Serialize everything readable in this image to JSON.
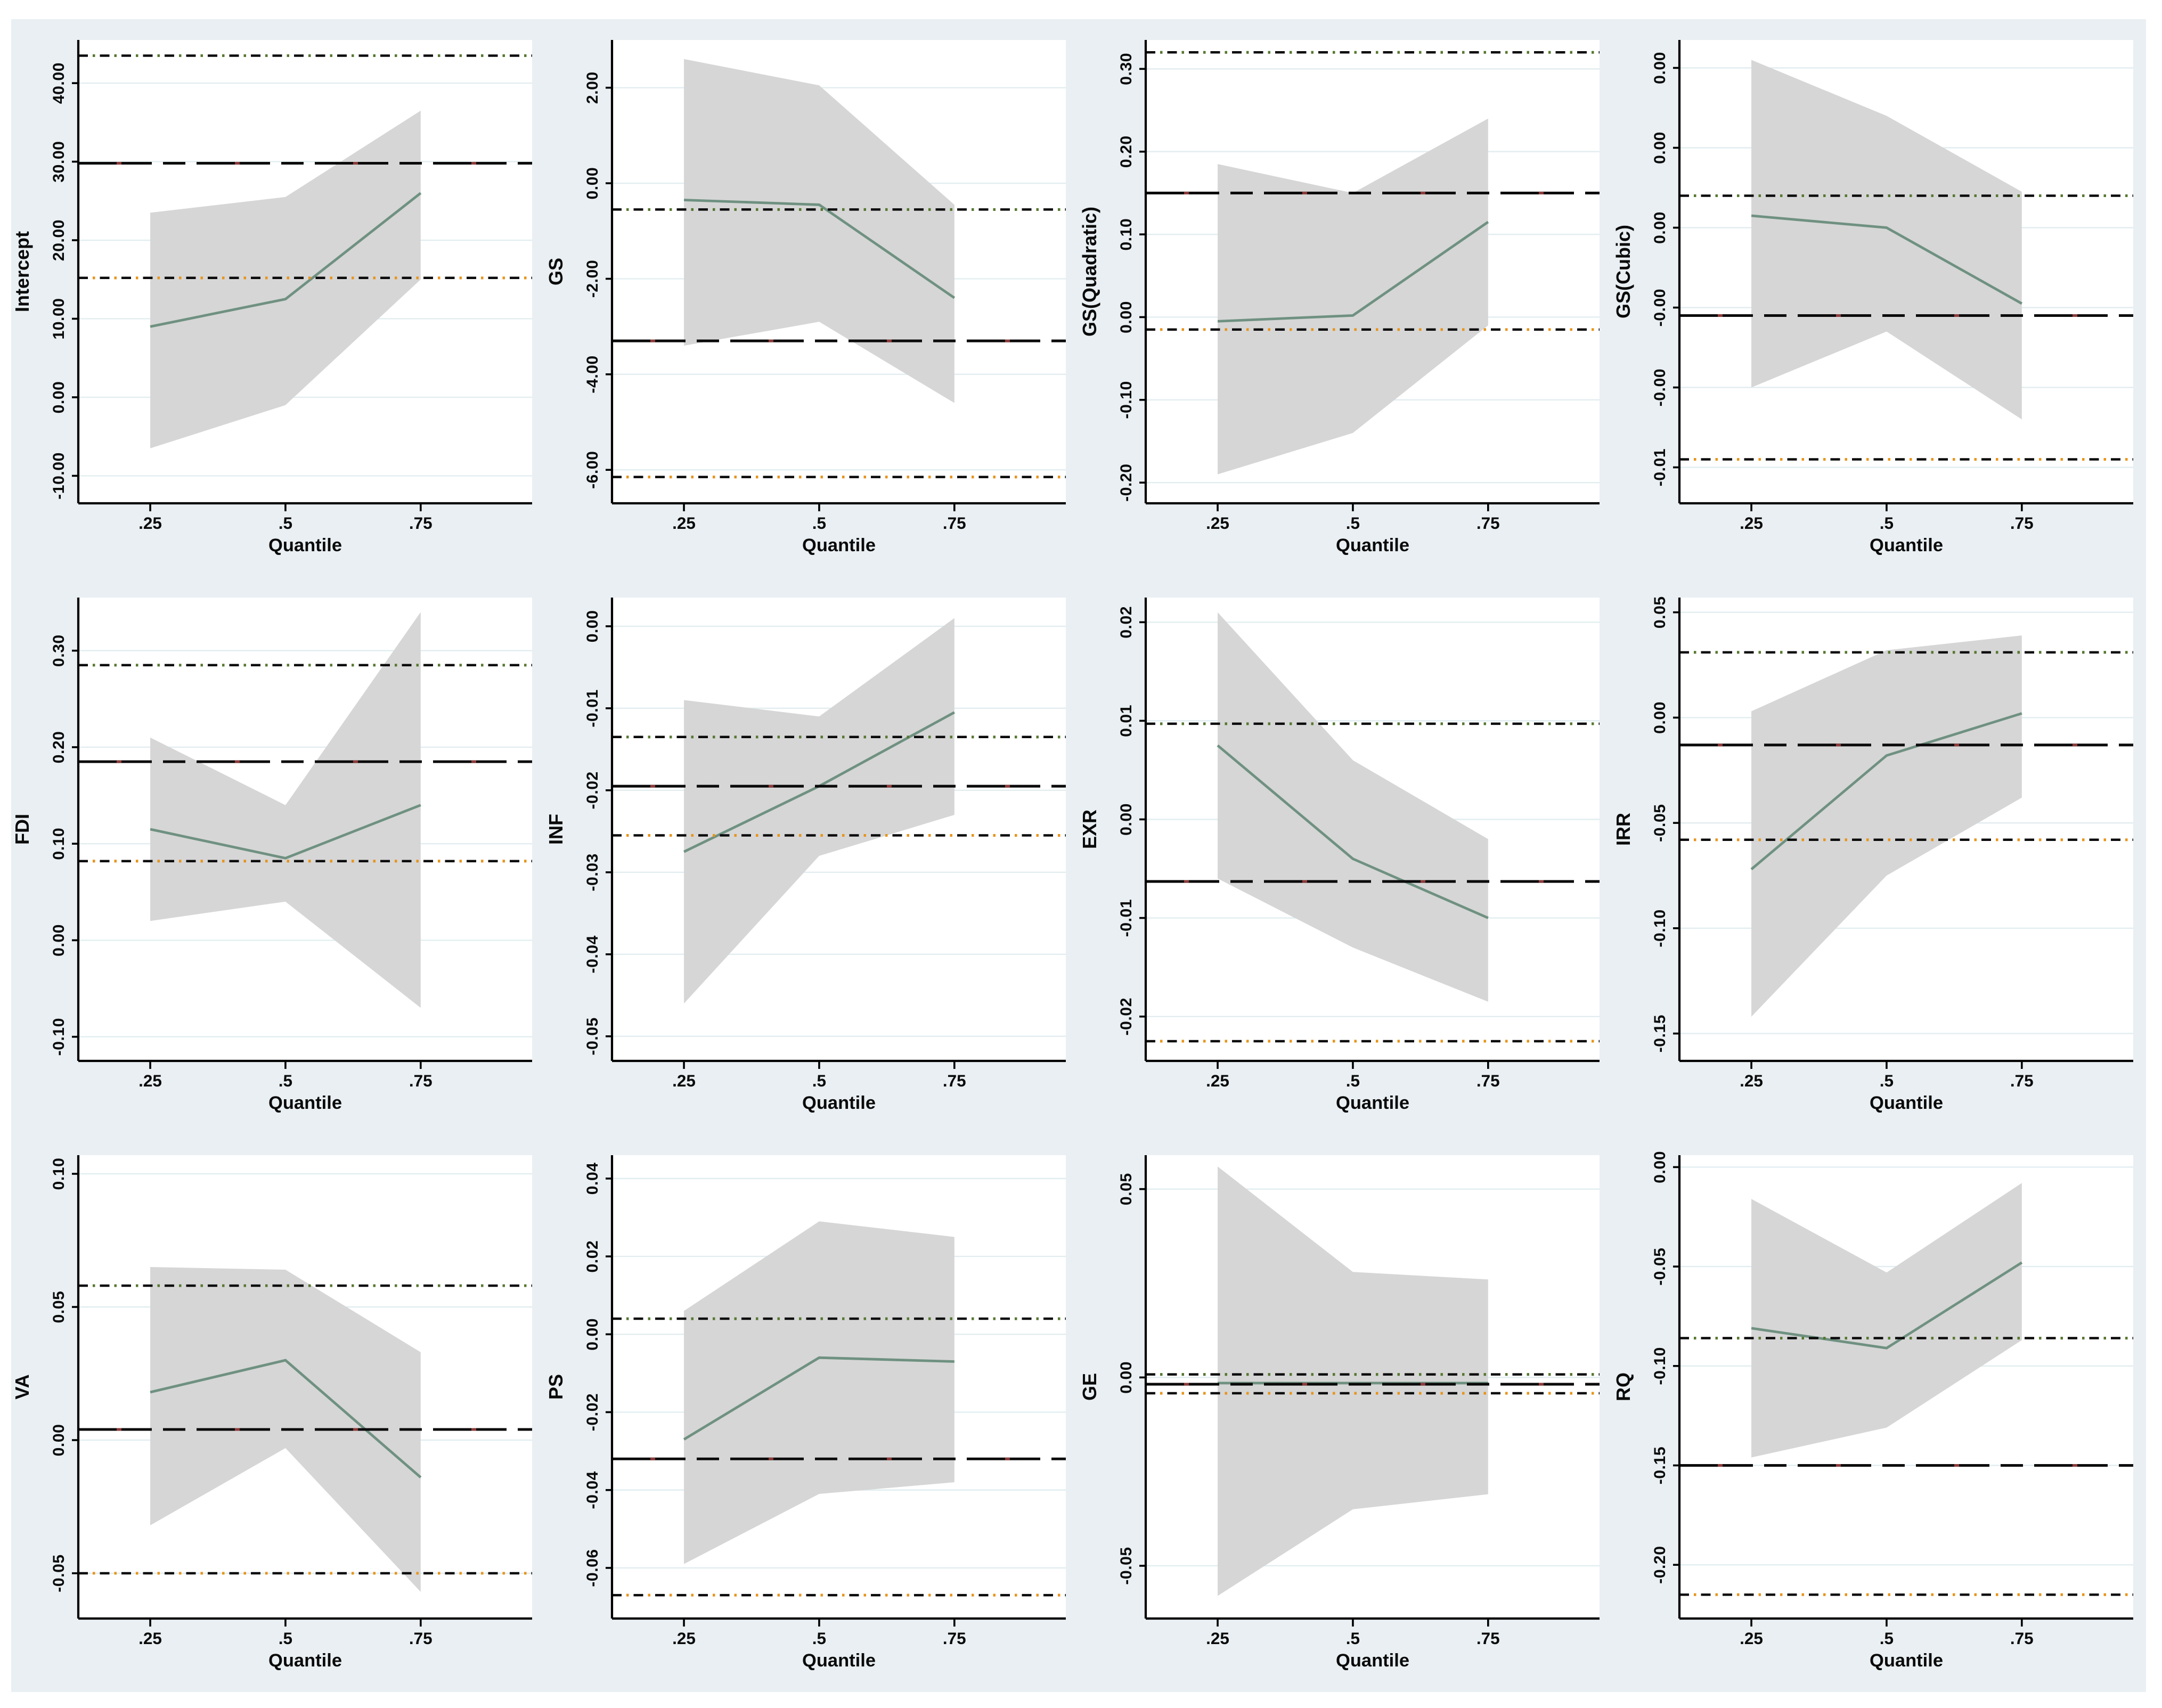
{
  "figure": {
    "background_color": "#e9eff2",
    "plot_background_color": "#ffffff",
    "gridline_color": "#e2edf0",
    "band_color": "#d6d6d6",
    "coefficient_line_color": "#6f9181",
    "ols_line_color": "#0a0a0a",
    "ols_accent_color": "#8e3b3b",
    "upper_ci_accent_color": "#56782f",
    "lower_ci_accent_color": "#e8941a"
  },
  "chart_data": {
    "type": "line",
    "description": "Grid of 12 quantile regression coefficient plots: green line = quantile coefficient estimate with gray 95% confidence band; horizontal long-dashed line = OLS estimate; horizontal dash-dot lines = OLS 95% confidence interval bounds.",
    "xlabel": "Quantile",
    "x": [
      0.25,
      0.5,
      0.75
    ],
    "xtick_labels": [
      ".25",
      ".5",
      ".75"
    ],
    "x_domain": [
      0.117,
      0.956
    ],
    "grid": true,
    "legend_position": "none",
    "series_roles": [
      "quantile-coefficient",
      "confidence-band",
      "ols-estimate",
      "ols-ci-upper",
      "ols-ci-lower"
    ],
    "panels": [
      {
        "slug": "intercept",
        "ylabel": "Intercept",
        "ylim": [
          -13.5,
          45.5
        ],
        "ytick_values": [
          -10,
          0,
          10,
          20,
          30,
          40
        ],
        "ytick_labels": [
          "-10.00",
          "0.00",
          "10.00",
          "20.00",
          "30.00",
          "40.00"
        ],
        "coef": [
          9.0,
          12.5,
          26.0
        ],
        "band_upper": [
          23.5,
          25.5,
          36.5
        ],
        "band_lower": [
          -6.5,
          -1.0,
          15.0
        ],
        "ols": 29.8,
        "ols_ci_upper": 43.5,
        "ols_ci_lower": 15.2
      },
      {
        "slug": "gs",
        "ylabel": "GS",
        "ylim": [
          -6.7,
          3.0
        ],
        "ytick_values": [
          -6,
          -4,
          -2,
          0,
          2
        ],
        "ytick_labels": [
          "-6.00",
          "-4.00",
          "-2.00",
          "0.00",
          "2.00"
        ],
        "coef": [
          -0.35,
          -0.45,
          -2.4
        ],
        "band_upper": [
          2.6,
          2.05,
          -0.45
        ],
        "band_lower": [
          -3.4,
          -2.9,
          -4.6
        ],
        "ols": -3.3,
        "ols_ci_upper": -0.55,
        "ols_ci_lower": -6.15
      },
      {
        "slug": "gs-quadratic",
        "ylabel": "GS(Quadratic)",
        "ylim": [
          -0.225,
          0.335
        ],
        "ytick_values": [
          -0.2,
          -0.1,
          0.0,
          0.1,
          0.2,
          0.3
        ],
        "ytick_labels": [
          "-0.20",
          "-0.10",
          "0.00",
          "0.10",
          "0.20",
          "0.30"
        ],
        "coef": [
          -0.005,
          0.002,
          0.115
        ],
        "band_upper": [
          0.185,
          0.15,
          0.24
        ],
        "band_lower": [
          -0.19,
          -0.14,
          -0.01
        ],
        "ols": 0.15,
        "ols_ci_upper": 0.32,
        "ols_ci_lower": -0.015
      },
      {
        "slug": "gs-cubic",
        "ylabel": "GS(Cubic)",
        "ylim": [
          -0.0069,
          0.0047
        ],
        "ytick_values": [
          -0.006,
          -0.004,
          -0.002,
          0.0,
          0.002,
          0.004
        ],
        "ytick_labels": [
          "-0.01",
          "-0.00",
          "-0.00",
          "0.00",
          "0.00",
          "0.00"
        ],
        "coef": [
          0.0003,
          0.0,
          -0.0019
        ],
        "band_upper": [
          0.0042,
          0.0028,
          0.0009
        ],
        "band_lower": [
          -0.004,
          -0.0026,
          -0.0048
        ],
        "ols": -0.0022,
        "ols_ci_upper": 0.0008,
        "ols_ci_lower": -0.0058
      },
      {
        "slug": "fdi",
        "ylabel": "FDI",
        "ylim": [
          -0.125,
          0.355
        ],
        "ytick_values": [
          -0.1,
          0.0,
          0.1,
          0.2,
          0.3
        ],
        "ytick_labels": [
          "-0.10",
          "0.00",
          "0.10",
          "0.20",
          "0.30"
        ],
        "coef": [
          0.115,
          0.085,
          0.14
        ],
        "band_upper": [
          0.21,
          0.14,
          0.34
        ],
        "band_lower": [
          0.02,
          0.04,
          -0.07
        ],
        "ols": 0.185,
        "ols_ci_upper": 0.285,
        "ols_ci_lower": 0.082
      },
      {
        "slug": "inf",
        "ylabel": "INF",
        "ylim": [
          -0.053,
          0.0035
        ],
        "ytick_values": [
          -0.05,
          -0.04,
          -0.03,
          -0.02,
          -0.01,
          0.0
        ],
        "ytick_labels": [
          "-0.05",
          "-0.04",
          "-0.03",
          "-0.02",
          "-0.01",
          "0.00"
        ],
        "coef": [
          -0.0275,
          -0.0195,
          -0.0105
        ],
        "band_upper": [
          -0.009,
          -0.011,
          0.001
        ],
        "band_lower": [
          -0.046,
          -0.028,
          -0.023
        ],
        "ols": -0.0195,
        "ols_ci_upper": -0.0135,
        "ols_ci_lower": -0.0255
      },
      {
        "slug": "exr",
        "ylabel": "EXR",
        "ylim": [
          -0.0245,
          0.0225
        ],
        "ytick_values": [
          -0.02,
          -0.01,
          0.0,
          0.01,
          0.02
        ],
        "ytick_labels": [
          "-0.02",
          "-0.01",
          "0.00",
          "0.01",
          "0.02"
        ],
        "coef": [
          0.0075,
          -0.004,
          -0.01
        ],
        "band_upper": [
          0.021,
          0.006,
          -0.002
        ],
        "band_lower": [
          -0.006,
          -0.013,
          -0.0185
        ],
        "ols": -0.0063,
        "ols_ci_upper": 0.0097,
        "ols_ci_lower": -0.0225
      },
      {
        "slug": "irr",
        "ylabel": "IRR",
        "ylim": [
          -0.163,
          0.057
        ],
        "ytick_values": [
          -0.15,
          -0.1,
          -0.05,
          0.0,
          0.05
        ],
        "ytick_labels": [
          "-0.15",
          "-0.10",
          "-0.05",
          "0.00",
          "0.05"
        ],
        "coef": [
          -0.072,
          -0.018,
          0.002
        ],
        "band_upper": [
          0.003,
          0.032,
          0.039
        ],
        "band_lower": [
          -0.142,
          -0.075,
          -0.038
        ],
        "ols": -0.013,
        "ols_ci_upper": 0.031,
        "ols_ci_lower": -0.058
      },
      {
        "slug": "va",
        "ylabel": "VA",
        "ylim": [
          -0.067,
          0.107
        ],
        "ytick_values": [
          -0.05,
          0.0,
          0.05,
          0.1
        ],
        "ytick_labels": [
          "-0.05",
          "0.00",
          "0.05",
          "0.10"
        ],
        "coef": [
          0.018,
          0.03,
          -0.014
        ],
        "band_upper": [
          0.065,
          0.064,
          0.033
        ],
        "band_lower": [
          -0.032,
          -0.003,
          -0.057
        ],
        "ols": 0.004,
        "ols_ci_upper": 0.058,
        "ols_ci_lower": -0.05
      },
      {
        "slug": "ps",
        "ylabel": "PS",
        "ylim": [
          -0.073,
          0.046
        ],
        "ytick_values": [
          -0.06,
          -0.04,
          -0.02,
          0.0,
          0.02,
          0.04
        ],
        "ytick_labels": [
          "-0.06",
          "-0.04",
          "-0.02",
          "0.00",
          "0.02",
          "0.04"
        ],
        "coef": [
          -0.027,
          -0.006,
          -0.007
        ],
        "band_upper": [
          0.006,
          0.029,
          0.025
        ],
        "band_lower": [
          -0.059,
          -0.041,
          -0.038
        ],
        "ols": -0.032,
        "ols_ci_upper": 0.004,
        "ols_ci_lower": -0.067
      },
      {
        "slug": "ge",
        "ylabel": "GE",
        "ylim": [
          -0.064,
          0.059
        ],
        "ytick_values": [
          -0.05,
          0.0,
          0.05
        ],
        "ytick_labels": [
          "-0.05",
          "0.00",
          "0.05"
        ],
        "coef": [
          -0.0015,
          -0.0015,
          -0.0015
        ],
        "band_upper": [
          0.056,
          0.028,
          0.026
        ],
        "band_lower": [
          -0.058,
          -0.035,
          -0.031
        ],
        "ols": -0.0018,
        "ols_ci_upper": 0.0008,
        "ols_ci_lower": -0.0042
      },
      {
        "slug": "rq",
        "ylabel": "RQ",
        "ylim": [
          -0.227,
          0.006
        ],
        "ytick_values": [
          -0.2,
          -0.15,
          -0.1,
          -0.05,
          0.0
        ],
        "ytick_labels": [
          "-0.20",
          "-0.15",
          "-0.10",
          "-0.05",
          "0.00"
        ],
        "coef": [
          -0.081,
          -0.091,
          -0.048
        ],
        "band_upper": [
          -0.016,
          -0.053,
          -0.008
        ],
        "band_lower": [
          -0.146,
          -0.131,
          -0.087
        ],
        "ols": -0.15,
        "ols_ci_upper": -0.086,
        "ols_ci_lower": -0.215
      }
    ]
  }
}
